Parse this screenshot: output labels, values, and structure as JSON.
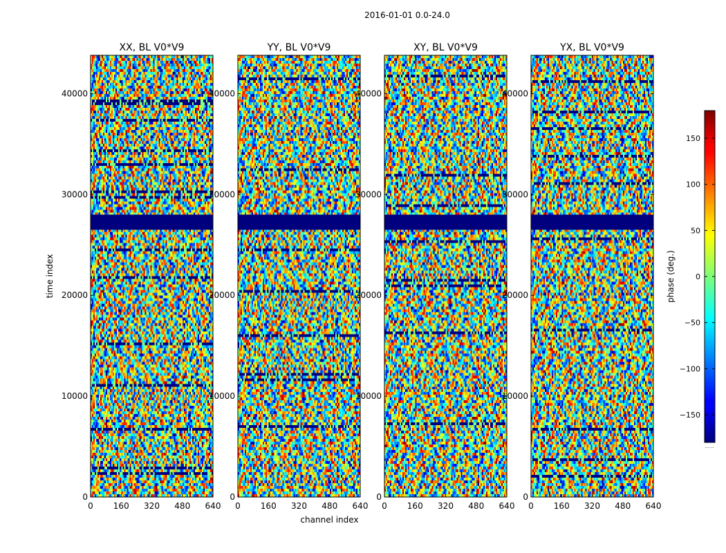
{
  "figure": {
    "suptitle": "2016-01-01 0.0-24.0"
  },
  "colorbar": {
    "label": "phase (deg.)",
    "ticks": [
      150,
      100,
      50,
      0,
      -50,
      -100,
      -150
    ],
    "tick_labels": [
      "150",
      "100",
      "50",
      "0",
      "−50",
      "−100",
      "−150"
    ],
    "range": [
      -180,
      180
    ],
    "colormap": "jet"
  },
  "chart_data": [
    {
      "type": "heatmap",
      "title": "XX, BL V0*V9",
      "xlabel": "",
      "ylabel": "time index",
      "xlim": [
        0,
        640
      ],
      "ylim": [
        0,
        43800
      ],
      "xticks": [
        0,
        160,
        320,
        480,
        640
      ],
      "yticks": [
        0,
        10000,
        20000,
        30000,
        40000
      ],
      "x_tick_labels": [
        "0",
        "160",
        "320",
        "480",
        "640"
      ],
      "y_tick_labels": [
        "0",
        "10000",
        "20000",
        "30000",
        "40000"
      ],
      "value_range": [
        -180,
        180
      ],
      "flagged_band": [
        26500,
        28000
      ]
    },
    {
      "type": "heatmap",
      "title": "YY, BL V0*V9",
      "xlabel": "channel index",
      "ylabel": "",
      "xlim": [
        0,
        640
      ],
      "ylim": [
        0,
        43800
      ],
      "xticks": [
        0,
        160,
        320,
        480,
        640
      ],
      "yticks": [
        0,
        10000,
        20000,
        30000,
        40000
      ],
      "x_tick_labels": [
        "0",
        "160",
        "320",
        "480",
        "640"
      ],
      "y_tick_labels": [
        "0",
        "10000",
        "20000",
        "30000",
        "40000"
      ],
      "value_range": [
        -180,
        180
      ],
      "flagged_band": [
        26500,
        28000
      ]
    },
    {
      "type": "heatmap",
      "title": "XY, BL V0*V9",
      "xlabel": "",
      "ylabel": "",
      "xlim": [
        0,
        640
      ],
      "ylim": [
        0,
        43800
      ],
      "xticks": [
        0,
        160,
        320,
        480,
        640
      ],
      "yticks": [
        0,
        10000,
        20000,
        30000,
        40000
      ],
      "x_tick_labels": [
        "0",
        "160",
        "320",
        "480",
        "640"
      ],
      "y_tick_labels": [
        "0",
        "10000",
        "20000",
        "30000",
        "40000"
      ],
      "value_range": [
        -180,
        180
      ],
      "flagged_band": [
        26500,
        28000
      ]
    },
    {
      "type": "heatmap",
      "title": "YX, BL V0*V9",
      "xlabel": "",
      "ylabel": "",
      "xlim": [
        0,
        640
      ],
      "ylim": [
        0,
        43800
      ],
      "xticks": [
        0,
        160,
        320,
        480,
        640
      ],
      "yticks": [
        0,
        10000,
        20000,
        30000,
        40000
      ],
      "x_tick_labels": [
        "0",
        "160",
        "320",
        "480",
        "640"
      ],
      "y_tick_labels": [
        "0",
        "10000",
        "20000",
        "30000",
        "40000"
      ],
      "value_range": [
        -180,
        180
      ],
      "flagged_band": [
        26500,
        28000
      ]
    }
  ]
}
